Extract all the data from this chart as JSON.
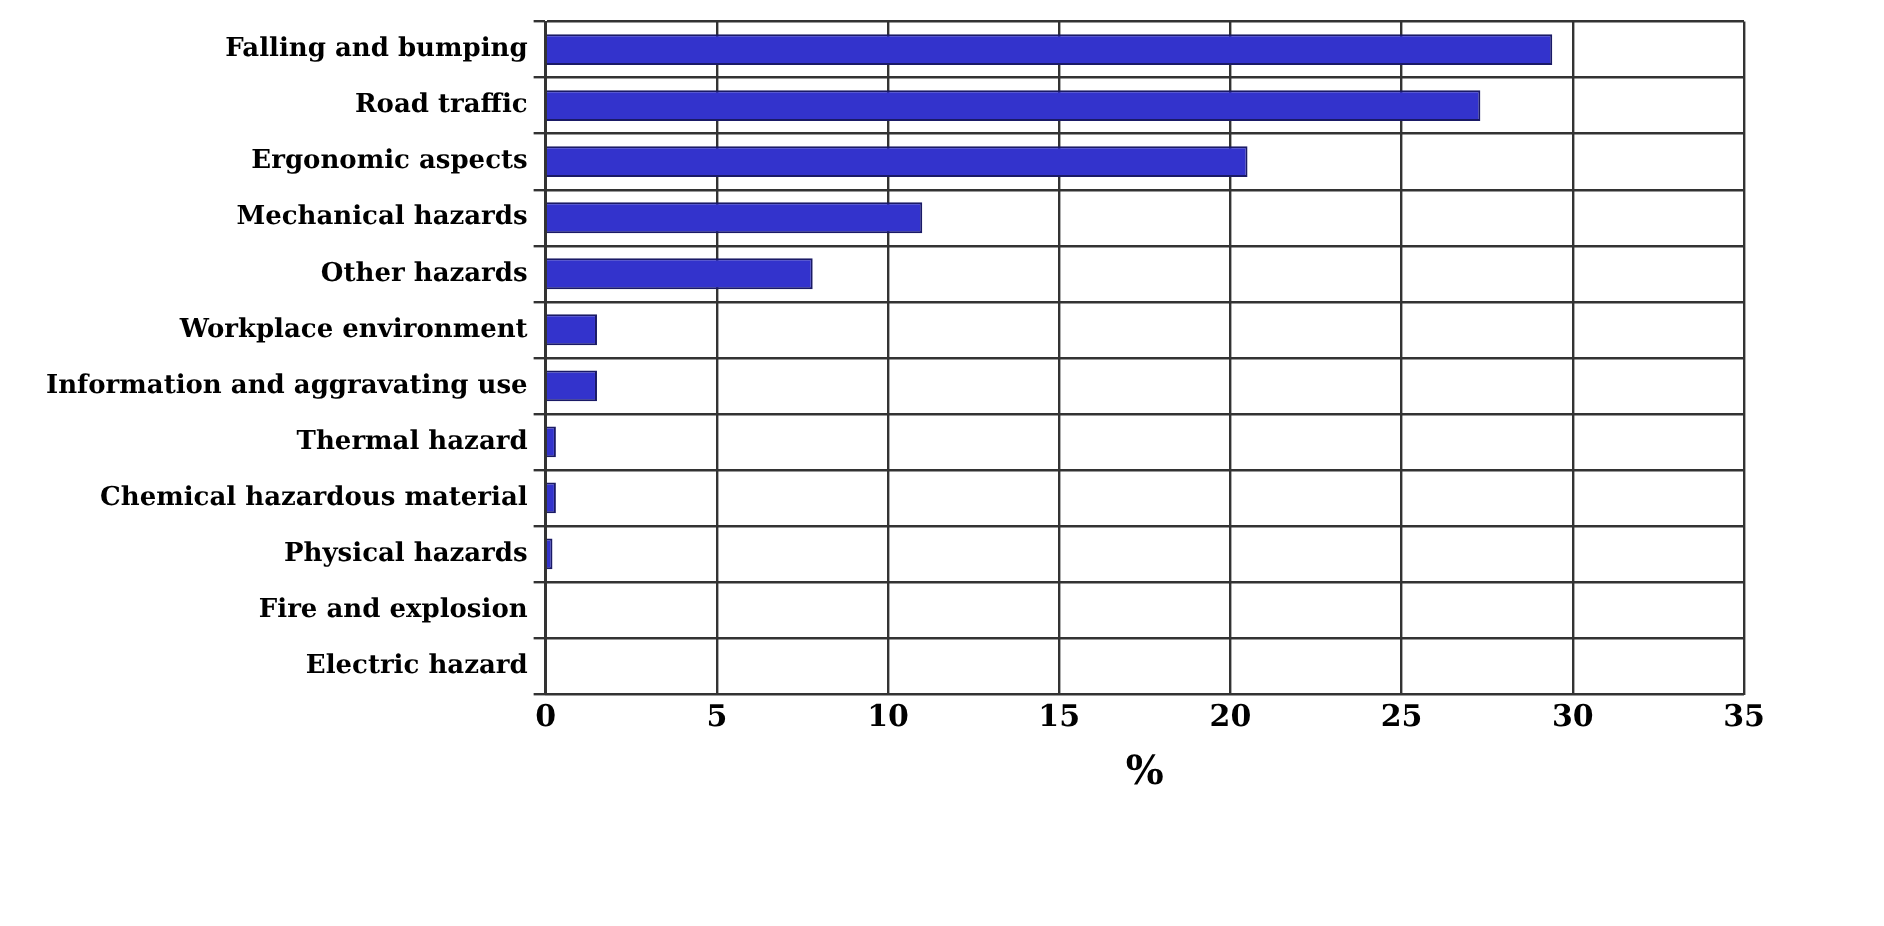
{
  "chart_data": {
    "type": "bar",
    "orientation": "horizontal",
    "xlabel": "%",
    "categories": [
      "Falling and bumping",
      "Road traffic",
      "Ergonomic aspects",
      "Mechanical hazards",
      "Other hazards",
      "Workplace environment",
      "Information and aggravating use",
      "Thermal hazard",
      "Chemical hazardous material",
      "Physical hazards",
      "Fire and explosion",
      "Electric hazard"
    ],
    "values": [
      29.4,
      27.3,
      20.5,
      11.0,
      7.8,
      1.5,
      1.5,
      0.3,
      0.3,
      0.2,
      0,
      0
    ],
    "color": "#3333cc",
    "xlim": [
      0,
      35
    ],
    "xticks": [
      0,
      5,
      10,
      15,
      20,
      25,
      30,
      35
    ],
    "grid": true
  }
}
